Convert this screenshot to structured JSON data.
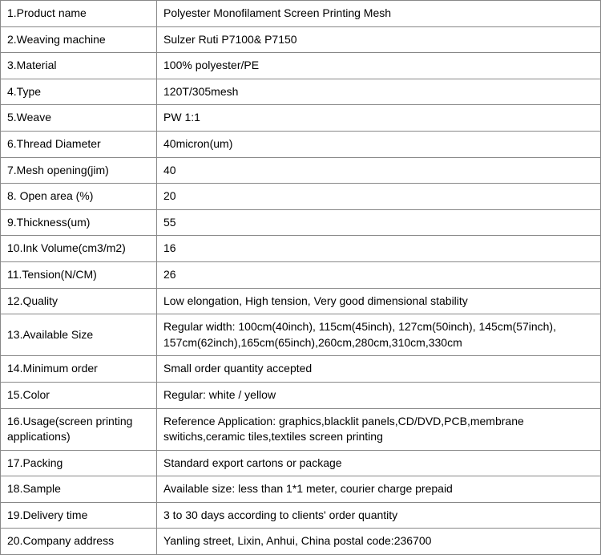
{
  "table": {
    "border_color": "#888888",
    "text_color": "#000000",
    "background_color": "#ffffff",
    "font_size": 14,
    "label_col_width": 195,
    "rows": [
      {
        "label": "1.Product name",
        "value": "Polyester Monofilament Screen Printing Mesh"
      },
      {
        "label": "2.Weaving machine",
        "value": "Sulzer Ruti P7100& P7150"
      },
      {
        "label": "3.Material",
        "value": "100% polyester/PE"
      },
      {
        "label": "4.Type",
        "value": "120T/305mesh"
      },
      {
        "label": "5.Weave",
        "value": "PW 1:1"
      },
      {
        "label": "6.Thread Diameter",
        "value": "40micron(um)"
      },
      {
        "label": "7.Mesh opening(jim)",
        "value": "40"
      },
      {
        "label": "8. Open area (%)",
        "value": "20"
      },
      {
        "label": "9.Thickness(um)",
        "value": "55"
      },
      {
        "label": "10.Ink Volume(cm3/m2)",
        "value": "16"
      },
      {
        "label": "11.Tension(N/CM)",
        "value": "26"
      },
      {
        "label": "12.Quality",
        "value": "Low elongation, High tension, Very good dimensional stability"
      },
      {
        "label": "13.Available Size",
        "value": "Regular width: 100cm(40inch), 115cm(45inch), 127cm(50inch), 145cm(57inch), 157cm(62inch),165cm(65inch),260cm,280cm,310cm,330cm"
      },
      {
        "label": "14.Minimum order",
        "value": "Small order quantity accepted"
      },
      {
        "label": "15.Color",
        "value": "Regular: white / yellow"
      },
      {
        "label": "16.Usage(screen printing applications)",
        "value": "Reference Application: graphics,blacklit panels,CD/DVD,PCB,membrane switichs,ceramic tiles,textiles screen printing"
      },
      {
        "label": "17.Packing",
        "value": "Standard export cartons or package"
      },
      {
        "label": "18.Sample",
        "value": "Available size: less than 1*1 meter, courier charge prepaid"
      },
      {
        "label": "19.Delivery time",
        "value": "3 to 30 days according to clients' order quantity"
      },
      {
        "label": "20.Company address",
        "value": "Yanling street, Lixin, Anhui, China    postal code:236700"
      }
    ]
  }
}
